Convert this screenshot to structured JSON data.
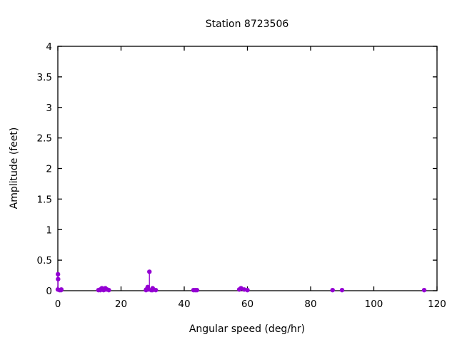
{
  "figure": {
    "background_color": "#ffffff",
    "text_color": "#000000"
  },
  "chart_data": {
    "type": "scatter",
    "style": "points-with-impulses",
    "title": "Station 8723506",
    "xlabel": "Angular speed (deg/hr)",
    "ylabel": "Amplitude (feet)",
    "xlim": [
      0,
      120
    ],
    "ylim": [
      0,
      4
    ],
    "x_ticks": [
      0,
      20,
      40,
      60,
      80,
      100,
      120
    ],
    "x_tick_labels": [
      "0",
      "20",
      "40",
      "60",
      "80",
      "100",
      "120"
    ],
    "y_ticks": [
      0,
      0.5,
      1,
      1.5,
      2,
      2.5,
      3,
      3.5,
      4
    ],
    "y_tick_labels": [
      "0",
      "0.5",
      "1",
      "1.5",
      "2",
      "2.5",
      "3",
      "3.5",
      "4"
    ],
    "grid": false,
    "legend": "none",
    "tick_style": "inward-mirrored-all-borders",
    "point_color": "#9400d3",
    "border_color": "#000000",
    "points": [
      {
        "x": 0.04,
        "y": 0.27
      },
      {
        "x": 0.08,
        "y": 0.19
      },
      {
        "x": 0.0,
        "y": 0.02
      },
      {
        "x": 0.54,
        "y": 0.01
      },
      {
        "x": 1.02,
        "y": 0.01
      },
      {
        "x": 1.1,
        "y": 0.02
      },
      {
        "x": 12.85,
        "y": 0.01
      },
      {
        "x": 13.4,
        "y": 0.02
      },
      {
        "x": 13.47,
        "y": 0.01
      },
      {
        "x": 13.94,
        "y": 0.04
      },
      {
        "x": 14.49,
        "y": 0.01
      },
      {
        "x": 14.96,
        "y": 0.02
      },
      {
        "x": 15.04,
        "y": 0.04
      },
      {
        "x": 15.58,
        "y": 0.02
      },
      {
        "x": 16.14,
        "y": 0.01
      },
      {
        "x": 27.9,
        "y": 0.01
      },
      {
        "x": 27.97,
        "y": 0.02
      },
      {
        "x": 28.44,
        "y": 0.06
      },
      {
        "x": 28.51,
        "y": 0.02
      },
      {
        "x": 28.98,
        "y": 0.31
      },
      {
        "x": 29.53,
        "y": 0.01
      },
      {
        "x": 29.96,
        "y": 0.01
      },
      {
        "x": 30.0,
        "y": 0.04
      },
      {
        "x": 30.08,
        "y": 0.02
      },
      {
        "x": 31.0,
        "y": 0.01
      },
      {
        "x": 42.93,
        "y": 0.01
      },
      {
        "x": 43.48,
        "y": 0.01
      },
      {
        "x": 44.03,
        "y": 0.01
      },
      {
        "x": 57.42,
        "y": 0.02
      },
      {
        "x": 57.97,
        "y": 0.04
      },
      {
        "x": 58.98,
        "y": 0.02
      },
      {
        "x": 60.0,
        "y": 0.01
      },
      {
        "x": 86.95,
        "y": 0.01
      },
      {
        "x": 89.95,
        "y": 0.01
      },
      {
        "x": 115.94,
        "y": 0.01
      }
    ]
  }
}
